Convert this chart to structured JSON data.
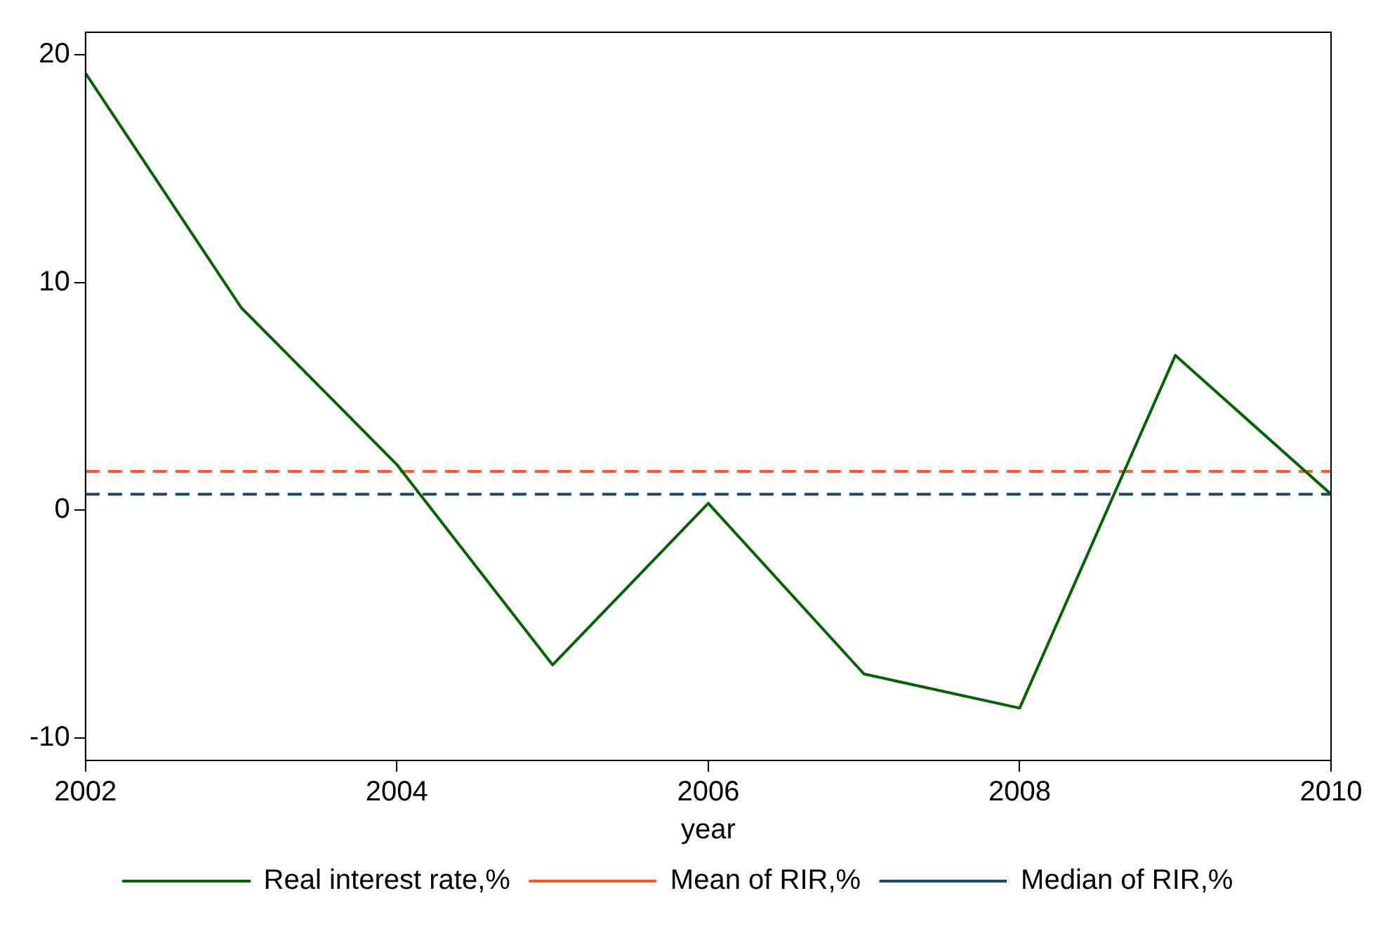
{
  "chart_data": {
    "type": "line",
    "xlabel": "year",
    "x": [
      2002,
      2003,
      2004,
      2005,
      2006,
      2007,
      2008,
      2009,
      2010
    ],
    "xlim": [
      2002,
      2010
    ],
    "xticks": [
      2002,
      2004,
      2006,
      2008,
      2010
    ],
    "ylim": [
      -11,
      21
    ],
    "yticks": [
      -10,
      0,
      10,
      20
    ],
    "grid": false,
    "legend": "bottom",
    "marker": "none",
    "series": [
      {
        "name": "Real interest rate,%",
        "color": "#006400",
        "values": [
          19.2,
          8.9,
          2.0,
          -6.8,
          0.3,
          -7.2,
          -8.7,
          6.8,
          0.7
        ],
        "line_style": "solid"
      },
      {
        "name": "Mean of RIR,%",
        "color": "#ff5a1e",
        "values": [
          1.7,
          1.7,
          1.7,
          1.7,
          1.7,
          1.7,
          1.7,
          1.7,
          1.7
        ],
        "line_style": "dashed"
      },
      {
        "name": "Median of RIR,%",
        "color": "#1a476f",
        "values": [
          0.7,
          0.7,
          0.7,
          0.7,
          0.7,
          0.7,
          0.7,
          0.7,
          0.7
        ],
        "line_style": "dashed"
      }
    ]
  }
}
